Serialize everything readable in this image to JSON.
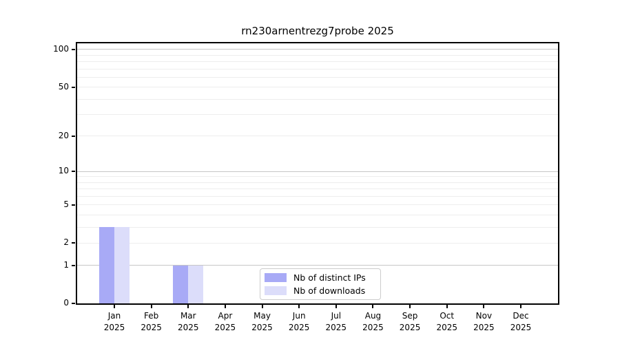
{
  "figure": {
    "title": "rn230arnentrezg7probe 2025"
  },
  "chart_data": {
    "type": "bar",
    "title": "rn230arnentrezg7probe 2025",
    "categories": [
      "Jan",
      "Feb",
      "Mar",
      "Apr",
      "May",
      "Jun",
      "Jul",
      "Aug",
      "Sep",
      "Oct",
      "Nov",
      "Dec"
    ],
    "year_label": "2025",
    "series": [
      {
        "name": "Nb of distinct IPs",
        "color": "#a8aaf6",
        "values": [
          3,
          0,
          1,
          0,
          0,
          0,
          0,
          0,
          0,
          0,
          0,
          0
        ]
      },
      {
        "name": "Nb of downloads",
        "color": "#dcddfa",
        "values": [
          3,
          0,
          1,
          0,
          0,
          0,
          0,
          0,
          0,
          0,
          0,
          0
        ]
      }
    ],
    "xlabel": "",
    "ylabel": "",
    "yscale": "log1p",
    "ylim": [
      0,
      112
    ],
    "y_ticks": [
      0,
      1,
      2,
      5,
      10,
      20,
      50,
      100
    ],
    "y_major_gridlines": [
      1,
      10,
      100
    ],
    "y_minor_gridlines": [
      2,
      3,
      4,
      5,
      6,
      7,
      8,
      9,
      20,
      30,
      40,
      50,
      60,
      70,
      80,
      90
    ],
    "grid": true,
    "legend_position": "lower-center",
    "colors": {
      "major_grid": "#c6c6c6",
      "minor_grid": "#ededed",
      "axis": "#000000",
      "background": "#ffffff"
    }
  }
}
